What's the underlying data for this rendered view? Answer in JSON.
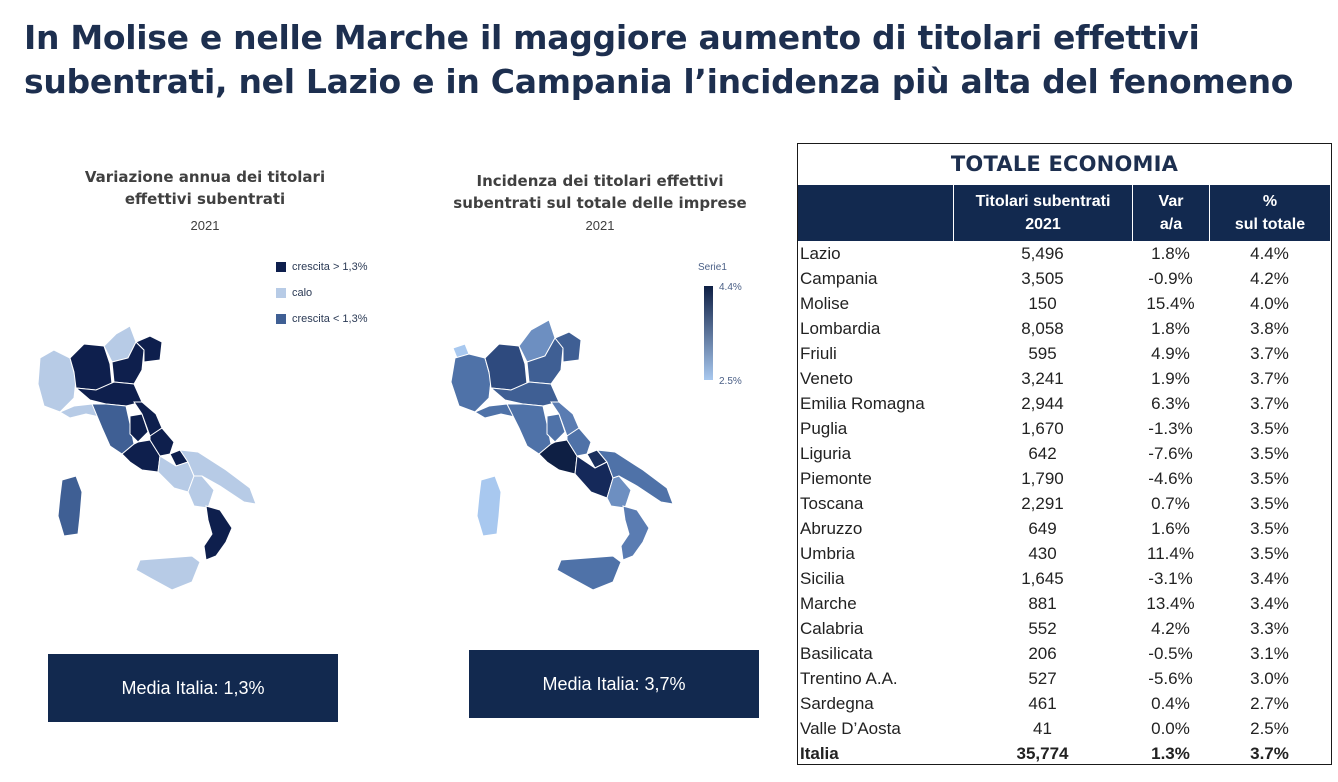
{
  "title": {
    "line1": "In Molise e nelle Marche il maggiore aumento di titolari effettivi",
    "line2": "subentrati, nel Lazio e in Campania l’incidenza più alta del fenomeno"
  },
  "map1": {
    "title_line1": "Variazione annua dei titolari",
    "title_line2": "effettivi subentrati",
    "year": "2021",
    "legend": [
      {
        "label": "crescita > 1,3%",
        "color": "#0e1f4d"
      },
      {
        "label": "calo",
        "color": "#b7cbe6"
      },
      {
        "label": "crescita < 1,3%",
        "color": "#3f5f94"
      }
    ],
    "media": "Media Italia: 1,3%"
  },
  "map2": {
    "title_line1": "Incidenza dei titolari effettivi",
    "title_line2": "subentrati sul totale delle imprese",
    "year": "2021",
    "scale_title": "Serie1",
    "scale_max": "4.4%",
    "scale_min": "2.5%",
    "media": "Media Italia: 3,7%"
  },
  "table": {
    "title": "TOTALE ECONOMIA",
    "headers": {
      "col2_line1": "Titolari subentrati",
      "col2_line2": "2021",
      "col3_line1": "Var",
      "col3_line2": "a/a",
      "col4_line1": "%",
      "col4_line2": "sul totale"
    },
    "rows": [
      {
        "region": "Lazio",
        "value": "5,496",
        "var": "1.8%",
        "pct": "4.4%"
      },
      {
        "region": "Campania",
        "value": "3,505",
        "var": "-0.9%",
        "pct": "4.2%"
      },
      {
        "region": "Molise",
        "value": "150",
        "var": "15.4%",
        "pct": "4.0%"
      },
      {
        "region": "Lombardia",
        "value": "8,058",
        "var": "1.8%",
        "pct": "3.8%"
      },
      {
        "region": "Friuli",
        "value": "595",
        "var": "4.9%",
        "pct": "3.7%"
      },
      {
        "region": "Veneto",
        "value": "3,241",
        "var": "1.9%",
        "pct": "3.7%"
      },
      {
        "region": "Emilia Romagna",
        "value": "2,944",
        "var": "6.3%",
        "pct": "3.7%"
      },
      {
        "region": "Puglia",
        "value": "1,670",
        "var": "-1.3%",
        "pct": "3.5%"
      },
      {
        "region": "Liguria",
        "value": "642",
        "var": "-7.6%",
        "pct": "3.5%"
      },
      {
        "region": "Piemonte",
        "value": "1,790",
        "var": "-4.6%",
        "pct": "3.5%"
      },
      {
        "region": "Toscana",
        "value": "2,291",
        "var": "0.7%",
        "pct": "3.5%"
      },
      {
        "region": "Abruzzo",
        "value": "649",
        "var": "1.6%",
        "pct": "3.5%"
      },
      {
        "region": "Umbria",
        "value": "430",
        "var": "11.4%",
        "pct": "3.5%"
      },
      {
        "region": "Sicilia",
        "value": "1,645",
        "var": "-3.1%",
        "pct": "3.4%"
      },
      {
        "region": "Marche",
        "value": "881",
        "var": "13.4%",
        "pct": "3.4%"
      },
      {
        "region": "Calabria",
        "value": "552",
        "var": "4.2%",
        "pct": "3.3%"
      },
      {
        "region": "Basilicata",
        "value": "206",
        "var": "-0.5%",
        "pct": "3.1%"
      },
      {
        "region": "Trentino A.A.",
        "value": "527",
        "var": "-5.6%",
        "pct": "3.0%"
      },
      {
        "region": "Sardegna",
        "value": "461",
        "var": "0.4%",
        "pct": "2.7%"
      },
      {
        "region": "Valle D’Aosta",
        "value": "41",
        "var": "0.0%",
        "pct": "2.5%"
      },
      {
        "region": "Italia",
        "value": "35,774",
        "var": "1.3%",
        "pct": "3.7%",
        "total": true
      }
    ]
  }
}
